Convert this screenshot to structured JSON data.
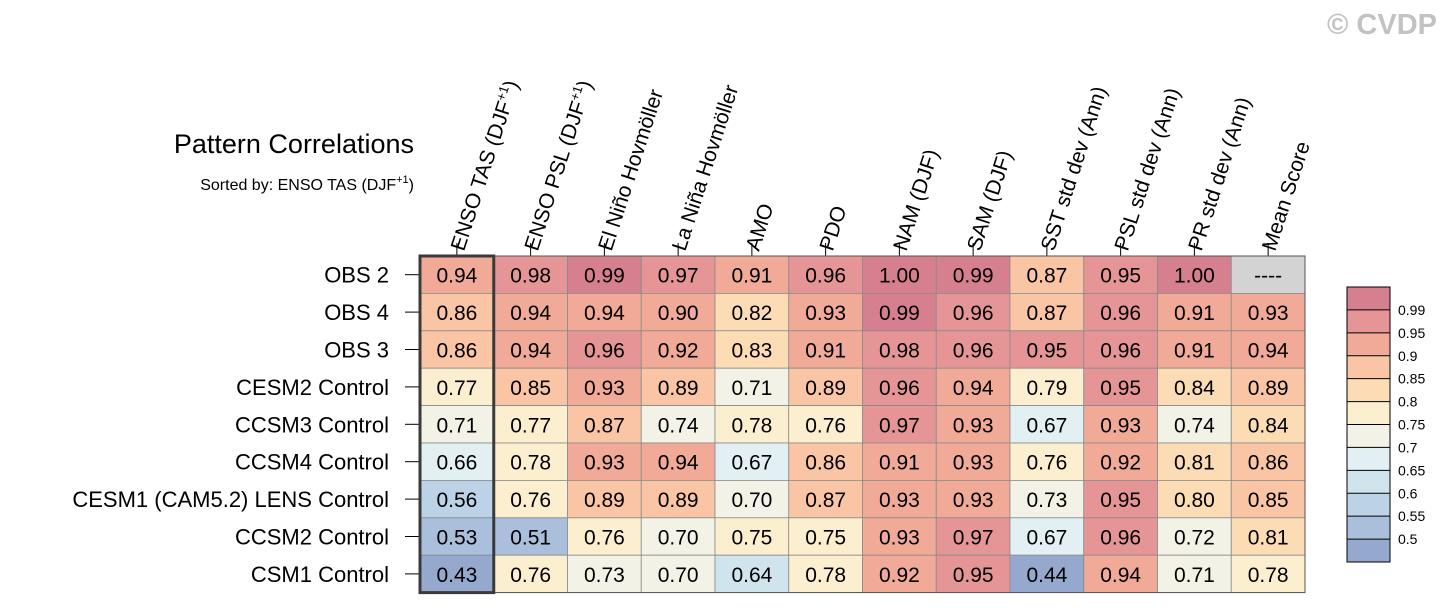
{
  "watermark": "© CVDP",
  "chart_data": {
    "type": "heatmap",
    "title": "Pattern Correlations",
    "subtitle_prefix": "Sorted by: ENSO TAS (DJF",
    "subtitle_sup": "+1",
    "subtitle_suffix": ")",
    "columns": [
      {
        "label": "ENSO TAS (DJF",
        "sup": "+1",
        "suffix": ")"
      },
      {
        "label": "ENSO PSL (DJF",
        "sup": "+1",
        "suffix": ")"
      },
      {
        "label": "El Niño Hovmöller"
      },
      {
        "label": "La Niña Hovmöller"
      },
      {
        "label": "AMO"
      },
      {
        "label": "PDO"
      },
      {
        "label": "NAM (DJF)"
      },
      {
        "label": "SAM (DJF)"
      },
      {
        "label": "SST std dev (Ann)"
      },
      {
        "label": "PSL std dev (Ann)"
      },
      {
        "label": "PR std dev (Ann)"
      },
      {
        "label": "Mean Score"
      }
    ],
    "rows": [
      "OBS 2",
      "OBS 4",
      "OBS 3",
      "CESM2 Control",
      "CCSM3 Control",
      "CCSM4 Control",
      "CESM1 (CAM5.2) LENS Control",
      "CCSM2 Control",
      "CSM1 Control"
    ],
    "values": [
      [
        "0.94",
        "0.98",
        "0.99",
        "0.97",
        "0.91",
        "0.96",
        "1.00",
        "0.99",
        "0.87",
        "0.95",
        "1.00",
        "----"
      ],
      [
        "0.86",
        "0.94",
        "0.94",
        "0.90",
        "0.82",
        "0.93",
        "0.99",
        "0.96",
        "0.87",
        "0.96",
        "0.91",
        "0.93"
      ],
      [
        "0.86",
        "0.94",
        "0.96",
        "0.92",
        "0.83",
        "0.91",
        "0.98",
        "0.96",
        "0.95",
        "0.96",
        "0.91",
        "0.94"
      ],
      [
        "0.77",
        "0.85",
        "0.93",
        "0.89",
        "0.71",
        "0.89",
        "0.96",
        "0.94",
        "0.79",
        "0.95",
        "0.84",
        "0.89"
      ],
      [
        "0.71",
        "0.77",
        "0.87",
        "0.74",
        "0.78",
        "0.76",
        "0.97",
        "0.93",
        "0.67",
        "0.93",
        "0.74",
        "0.84"
      ],
      [
        "0.66",
        "0.78",
        "0.93",
        "0.94",
        "0.67",
        "0.86",
        "0.91",
        "0.93",
        "0.76",
        "0.92",
        "0.81",
        "0.86"
      ],
      [
        "0.56",
        "0.76",
        "0.89",
        "0.89",
        "0.70",
        "0.87",
        "0.93",
        "0.93",
        "0.73",
        "0.95",
        "0.80",
        "0.85"
      ],
      [
        "0.53",
        "0.51",
        "0.76",
        "0.70",
        "0.75",
        "0.75",
        "0.93",
        "0.97",
        "0.67",
        "0.96",
        "0.72",
        "0.81"
      ],
      [
        "0.43",
        "0.76",
        "0.73",
        "0.70",
        "0.64",
        "0.78",
        "0.92",
        "0.95",
        "0.44",
        "0.94",
        "0.71",
        "0.78"
      ]
    ],
    "sorted_column_index": 0,
    "missing_color": "#d3d3d3",
    "colorbar": {
      "labels": [
        "0.99",
        "0.95",
        "0.9",
        "0.85",
        "0.8",
        "0.75",
        "0.7",
        "0.65",
        "0.6",
        "0.55",
        "0.5"
      ],
      "thresholds": [
        0.5,
        0.55,
        0.6,
        0.65,
        0.7,
        0.75,
        0.8,
        0.85,
        0.9,
        0.95,
        0.99
      ],
      "colors": [
        "#95a8ce",
        "#a9bfdc",
        "#bcd3e7",
        "#d0e4ee",
        "#e2eff3",
        "#f3f2e6",
        "#fcefd0",
        "#fcdcb4",
        "#f9c5a5",
        "#f1aa97",
        "#e59596",
        "#d67f8f"
      ]
    }
  }
}
